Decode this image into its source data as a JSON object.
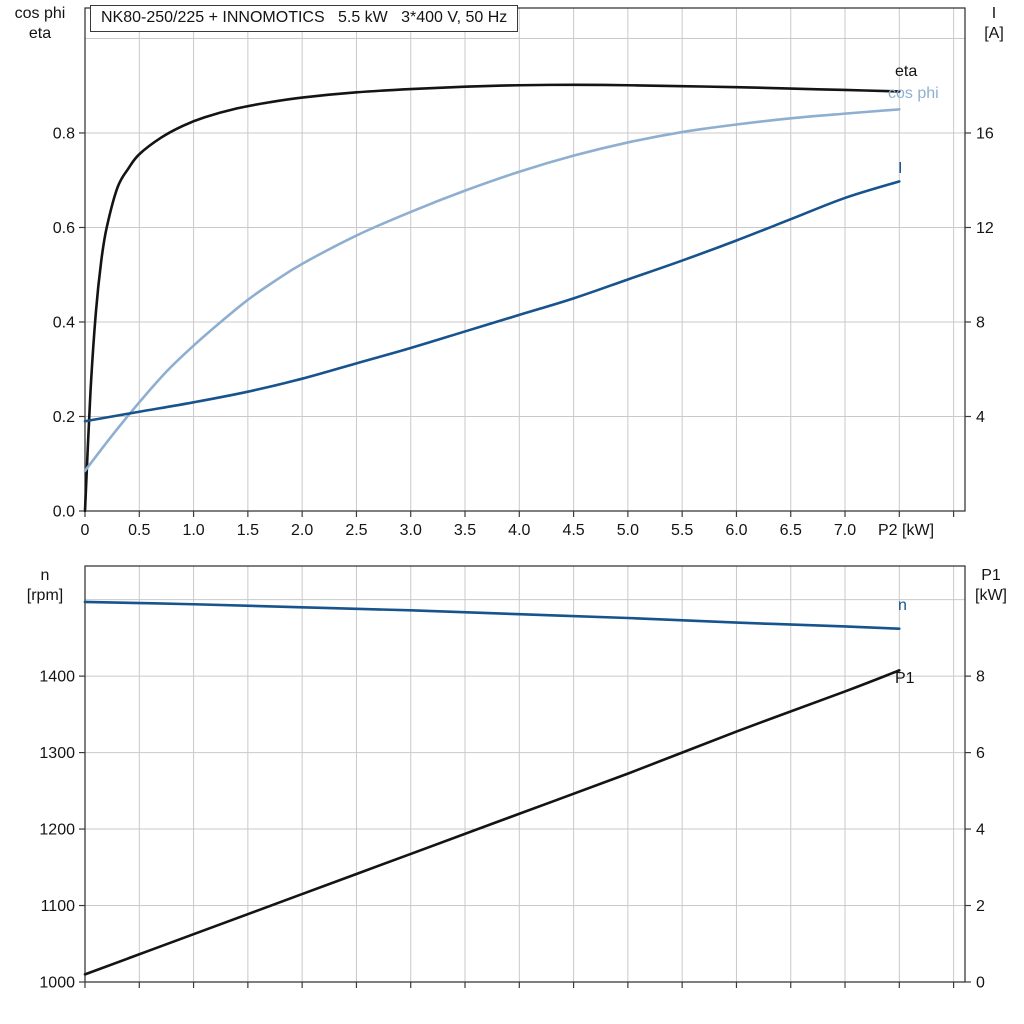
{
  "colors": {
    "black": "#141414",
    "darkblue": "#17538d",
    "lightblue": "#8fafd0",
    "grid": "#c9c9c9",
    "axis": "#3a3a3a",
    "background": "#ffffff"
  },
  "labels": {
    "title": "NK80-250/225 + INNOMOTICS   5.5 kW   3*400 V, 50 Hz",
    "top_left": [
      "cos phi",
      "eta"
    ],
    "top_right": [
      "I",
      "[A]"
    ],
    "bottom_left": [
      "n",
      "[rpm]"
    ],
    "bottom_right": [
      "P1",
      "[kW]"
    ],
    "x_axis": "P2 [kW]"
  },
  "curve_labels": {
    "eta": "eta",
    "cos_phi": "cos phi",
    "current": "I",
    "speed": "n",
    "power": "P1"
  },
  "chart_data": [
    {
      "type": "line",
      "title": "NK80-250/225 + INNOMOTICS   5.5 kW   3*400 V, 50 Hz",
      "x_axis": {
        "label": "P2 [kW]",
        "min": 0,
        "max": 8.105,
        "grid_step": 0.5,
        "tick_values": [
          0,
          0.5,
          1.0,
          1.5,
          2.0,
          2.5,
          3.0,
          3.5,
          4.0,
          4.5,
          5.0,
          5.5,
          6.0,
          6.5,
          7.0
        ],
        "tick_labels": [
          "0",
          "0.5",
          "1.0",
          "1.5",
          "2.0",
          "2.5",
          "3.0",
          "3.5",
          "4.0",
          "4.5",
          "5.0",
          "5.5",
          "6.0",
          "6.5",
          "7.0"
        ]
      },
      "y_left": {
        "label": "cos phi / eta",
        "min": 0,
        "max": 1.0645,
        "tick_values": [
          0,
          0.2,
          0.4,
          0.6,
          0.8
        ],
        "tick_labels": [
          "0.0",
          "0.2",
          "0.4",
          "0.6",
          "0.8"
        ],
        "grid_ticks": [
          0.2,
          0.4,
          0.6,
          0.8,
          1.0
        ]
      },
      "y_right": {
        "label": "I [A]",
        "min": 0,
        "max": 21.29,
        "tick_values": [
          4,
          8,
          12,
          16
        ],
        "tick_labels": [
          "4",
          "8",
          "12",
          "16"
        ]
      },
      "series": [
        {
          "name": "eta",
          "axis": "left",
          "color": "black",
          "points": [
            [
              0,
              0
            ],
            [
              0.05,
              0.25
            ],
            [
              0.1,
              0.42
            ],
            [
              0.15,
              0.53
            ],
            [
              0.2,
              0.6
            ],
            [
              0.3,
              0.685
            ],
            [
              0.4,
              0.725
            ],
            [
              0.5,
              0.755
            ],
            [
              0.7,
              0.79
            ],
            [
              0.9,
              0.815
            ],
            [
              1.1,
              0.833
            ],
            [
              1.4,
              0.852
            ],
            [
              1.7,
              0.865
            ],
            [
              2.0,
              0.875
            ],
            [
              2.5,
              0.886
            ],
            [
              3.0,
              0.893
            ],
            [
              3.5,
              0.898
            ],
            [
              4.0,
              0.901
            ],
            [
              4.5,
              0.902
            ],
            [
              5.0,
              0.901
            ],
            [
              5.5,
              0.899
            ],
            [
              6.0,
              0.897
            ],
            [
              6.5,
              0.894
            ],
            [
              7.0,
              0.891
            ],
            [
              7.5,
              0.888
            ]
          ]
        },
        {
          "name": "cos-phi",
          "axis": "left",
          "color": "lightblue",
          "points": [
            [
              0,
              0.085
            ],
            [
              0.25,
              0.16
            ],
            [
              0.5,
              0.23
            ],
            [
              0.75,
              0.295
            ],
            [
              1.0,
              0.35
            ],
            [
              1.25,
              0.4
            ],
            [
              1.5,
              0.447
            ],
            [
              1.75,
              0.487
            ],
            [
              2.0,
              0.523
            ],
            [
              2.5,
              0.583
            ],
            [
              3.0,
              0.633
            ],
            [
              3.5,
              0.678
            ],
            [
              4.0,
              0.718
            ],
            [
              4.5,
              0.752
            ],
            [
              5.0,
              0.78
            ],
            [
              5.5,
              0.802
            ],
            [
              6.0,
              0.818
            ],
            [
              6.5,
              0.831
            ],
            [
              7.0,
              0.841
            ],
            [
              7.5,
              0.85
            ]
          ]
        },
        {
          "name": "I",
          "axis": "right",
          "color": "darkblue",
          "points": [
            [
              0,
              3.8
            ],
            [
              0.5,
              4.2
            ],
            [
              1.0,
              4.6
            ],
            [
              1.5,
              5.05
            ],
            [
              2.0,
              5.6
            ],
            [
              2.5,
              6.25
            ],
            [
              3.0,
              6.9
            ],
            [
              3.5,
              7.6
            ],
            [
              4.0,
              8.3
            ],
            [
              4.5,
              9.0
            ],
            [
              5.0,
              9.8
            ],
            [
              5.5,
              10.6
            ],
            [
              6.0,
              11.45
            ],
            [
              6.5,
              12.35
            ],
            [
              7.0,
              13.25
            ],
            [
              7.5,
              13.95
            ]
          ]
        }
      ]
    },
    {
      "type": "line",
      "title": "",
      "x_axis": {
        "label": "",
        "min": 0,
        "max": 8.105,
        "grid_step": 0.5,
        "tick_values": [],
        "tick_labels": []
      },
      "y_left": {
        "label": "n [rpm]",
        "min": 1000,
        "max": 1544,
        "tick_values": [
          1000,
          1100,
          1200,
          1300,
          1400
        ],
        "tick_labels": [
          "1000",
          "1100",
          "1200",
          "1300",
          "1400"
        ],
        "grid_ticks": [
          1100,
          1200,
          1300,
          1400,
          1500
        ]
      },
      "y_right": {
        "label": "P1 [kW]",
        "min": 0,
        "max": 10.88,
        "tick_values": [
          0,
          2,
          4,
          6,
          8
        ],
        "tick_labels": [
          "0",
          "2",
          "4",
          "6",
          "8"
        ]
      },
      "series": [
        {
          "name": "n",
          "axis": "left",
          "color": "darkblue",
          "points": [
            [
              0,
              1497
            ],
            [
              1,
              1494
            ],
            [
              2,
              1490
            ],
            [
              3,
              1486
            ],
            [
              4,
              1481
            ],
            [
              5,
              1476
            ],
            [
              6,
              1470
            ],
            [
              7,
              1465
            ],
            [
              7.5,
              1462
            ]
          ]
        },
        {
          "name": "P1",
          "axis": "right",
          "color": "black",
          "points": [
            [
              0,
              0.2
            ],
            [
              1,
              1.25
            ],
            [
              2,
              2.3
            ],
            [
              3,
              3.35
            ],
            [
              4,
              4.4
            ],
            [
              5,
              5.45
            ],
            [
              6,
              6.55
            ],
            [
              7,
              7.6
            ],
            [
              7.5,
              8.15
            ]
          ]
        }
      ]
    }
  ]
}
